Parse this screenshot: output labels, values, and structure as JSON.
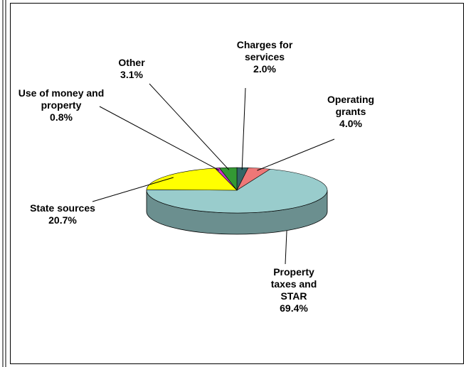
{
  "chart_data": {
    "type": "pie",
    "categories": [
      "Charges for services",
      "Operating grants",
      "Property taxes and STAR",
      "State sources",
      "Use of money and property",
      "Other"
    ],
    "values": [
      2.0,
      4.0,
      69.4,
      20.7,
      0.8,
      3.1
    ],
    "value_labels": [
      "2.0%",
      "4.0%",
      "69.4%",
      "20.7%",
      "0.8%",
      "3.1%"
    ],
    "colors": [
      "#336666",
      "#ee7777",
      "#99cccc",
      "#ffff00",
      "#cc33cc",
      "#339933"
    ],
    "three_d": true
  }
}
